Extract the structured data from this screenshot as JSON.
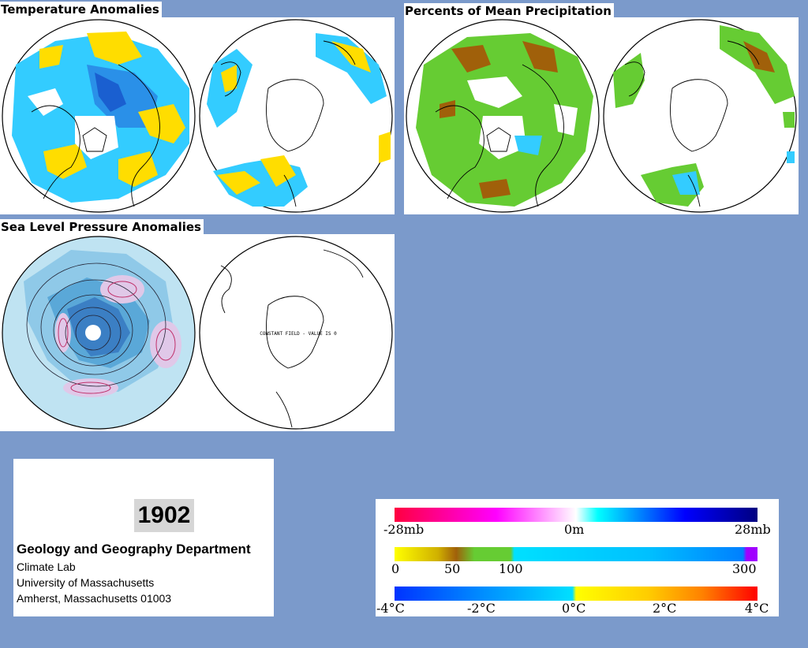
{
  "titles": {
    "temperature": "Temperature Anomalies",
    "precipitation": "Percents of Mean Precipitation",
    "pressure": "Sea Level Pressure Anomalies"
  },
  "pressure_map": {
    "south_label": "CONSTANT FIELD - VALUE IS 0"
  },
  "info": {
    "year": "1902",
    "department": "Geology and Geography Department",
    "lab": "Climate Lab",
    "university": "University of Massachusetts",
    "city": "Amherst, Massachusetts 01003"
  },
  "legends": {
    "pressure": {
      "min": "-28mb",
      "mid": "0m",
      "max": "28mb",
      "colors": [
        "#ff0040",
        "#ff00ff",
        "#ffffff",
        "#00ffff",
        "#000080"
      ]
    },
    "precipitation": {
      "t0": "0",
      "t50": "50",
      "t100": "100",
      "t300": "300",
      "colors": [
        "#ffff00",
        "#a0600a",
        "#66cc33",
        "#00e0ff",
        "#0080ff",
        "#a000ff"
      ]
    },
    "temperature": {
      "t1": "-4°C",
      "t2": "-2°C",
      "t3": "0°C",
      "t4": "2°C",
      "t5": "4°C",
      "colors": [
        "#0033ff",
        "#00c0ff",
        "#ffff00",
        "#ff8000",
        "#ff0000"
      ]
    }
  },
  "colors": {
    "background": "#7b9acb",
    "cold": "#33ccff",
    "warm": "#ffdd00",
    "dry": "#66cc33"
  }
}
